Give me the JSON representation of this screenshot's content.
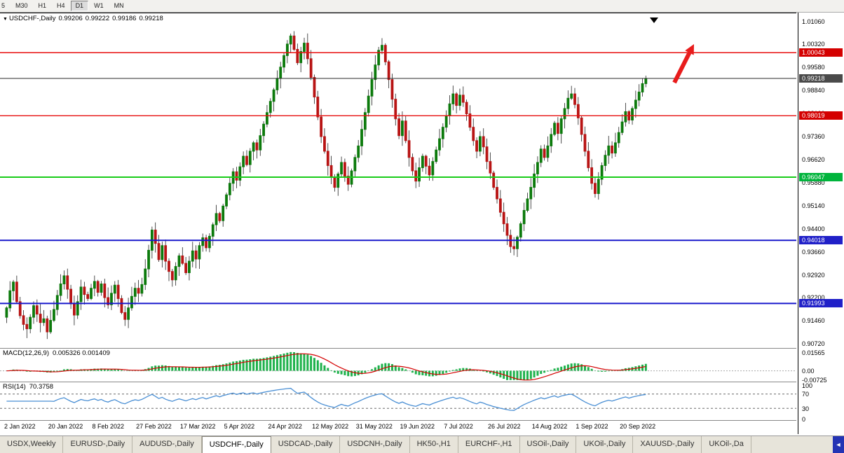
{
  "toolbar": {
    "timeframes": [
      "5",
      "M30",
      "H1",
      "H4",
      "D1",
      "W1",
      "MN"
    ],
    "active": "D1"
  },
  "chart": {
    "collapse_icon": "▼",
    "symbol_label": "USDCHF-,Daily",
    "ohlc": {
      "open": "0.99206",
      "high": "0.99222",
      "low": "0.99186",
      "close": "0.99218"
    }
  },
  "price_axis": {
    "ticks": [
      "1.01060",
      "1.00320",
      "0.99580",
      "0.98840",
      "0.98100",
      "0.97360",
      "0.96620",
      "0.95880",
      "0.95140",
      "0.94400",
      "0.93660",
      "0.92920",
      "0.92200",
      "0.91460",
      "0.90720"
    ],
    "badges": [
      {
        "value": "1.00043",
        "bg": "#d40000"
      },
      {
        "value": "0.99218",
        "bg": "#4a4a4a"
      },
      {
        "value": "0.98019",
        "bg": "#d40000"
      },
      {
        "value": "0.96047",
        "bg": "#00b43c"
      },
      {
        "value": "0.94018",
        "bg": "#2020c8"
      },
      {
        "value": "0.91993",
        "bg": "#2020c8"
      }
    ]
  },
  "macd": {
    "name": "MACD(12,26,9)",
    "values_text": "0.005326 0.001409",
    "axis": [
      {
        "label": "0.01565",
        "v": 0.01565
      },
      {
        "label": "0.00",
        "v": 0
      },
      {
        "label": "-0.00725",
        "v": -0.00725
      }
    ]
  },
  "rsi": {
    "name": "RSI(14)",
    "value_text": "70.3758",
    "axis": [
      {
        "label": "100",
        "v": 100
      },
      {
        "label": "70",
        "v": 70
      },
      {
        "label": "30",
        "v": 30
      },
      {
        "label": "0",
        "v": 0
      }
    ],
    "dashed_levels": [
      70,
      30
    ]
  },
  "date_axis": [
    "2 Jan 2022",
    "20 Jan 2022",
    "8 Feb 2022",
    "27 Feb 2022",
    "17 Mar 2022",
    "5 Apr 2022",
    "24 Apr 2022",
    "12 May 2022",
    "31 May 2022",
    "19 Jun 2022",
    "7 Jul 2022",
    "26 Jul 2022",
    "14 Aug 2022",
    "1 Sep 2022",
    "20 Sep 2022"
  ],
  "tabs": {
    "active": "USDCHF-,Daily",
    "scroll_button": "◄",
    "items": [
      "USDX,Weekly",
      "EURUSD-,Daily",
      "AUDUSD-,Daily",
      "USDCHF-,Daily",
      "USDCAD-,Daily",
      "USDCNH-,Daily",
      "HK50-,H1",
      "EURCHF-,H1",
      "USOil-,Daily",
      "UKOil-,Daily",
      "XAUUSD-,Daily",
      "UKOil-,Da"
    ],
    "note": ""
  },
  "chart_data": {
    "type": "candlestick",
    "symbol": "USDCHF-",
    "timeframe": "Daily",
    "title": "USDCHF-,Daily 0.99206 0.99222 0.99186 0.99218",
    "last_price": 0.99218,
    "y_axis": {
      "min": 0.9072,
      "max": 1.0106,
      "tick_step": 0.0074
    },
    "x_range": [
      "2 Jan 2022",
      "20 Sep 2022"
    ],
    "horizontal_levels": [
      {
        "price": 1.00043,
        "color": "#e81010",
        "width": 1.4
      },
      {
        "price": 0.98019,
        "color": "#e81010",
        "width": 1.4
      },
      {
        "price": 0.96047,
        "color": "#18cc18",
        "width": 2
      },
      {
        "price": 0.94018,
        "color": "#1818cc",
        "width": 2
      },
      {
        "price": 0.91993,
        "color": "#1818cc",
        "width": 2
      }
    ],
    "current_price_line": {
      "price": 0.99218,
      "color": "#2a2a2a"
    },
    "closes": [
      0.9185,
      0.924,
      0.9268,
      0.9205,
      0.916,
      0.9132,
      0.9118,
      0.9155,
      0.9192,
      0.9165,
      0.9138,
      0.915,
      0.9108,
      0.9145,
      0.918,
      0.9225,
      0.9262,
      0.9288,
      0.9245,
      0.9198,
      0.9162,
      0.9205,
      0.9252,
      0.9228,
      0.9215,
      0.9248,
      0.927,
      0.9235,
      0.9262,
      0.9218,
      0.9195,
      0.9232,
      0.9258,
      0.9215,
      0.917,
      0.9148,
      0.9185,
      0.9222,
      0.9248,
      0.9232,
      0.926,
      0.931,
      0.937,
      0.9435,
      0.9392,
      0.934,
      0.9385,
      0.9335,
      0.9302,
      0.9275,
      0.9318,
      0.9352,
      0.9328,
      0.9298,
      0.9335,
      0.9368,
      0.9342,
      0.9385,
      0.941,
      0.9378,
      0.9415,
      0.9452,
      0.9488,
      0.9465,
      0.9512,
      0.9548,
      0.9585,
      0.9622,
      0.9595,
      0.9638,
      0.9672,
      0.9645,
      0.9688,
      0.9715,
      0.9692,
      0.9738,
      0.9775,
      0.9812,
      0.9848,
      0.9885,
      0.9922,
      0.9958,
      0.9995,
      1.0032,
      1.0058,
      1.0015,
      0.9972,
      1.0008,
      1.0035,
      0.9985,
      0.9925,
      0.9862,
      0.9798,
      0.9735,
      0.9688,
      0.9642,
      0.9605,
      0.9572,
      0.9615,
      0.9652,
      0.9608,
      0.9582,
      0.9625,
      0.9668,
      0.9705,
      0.9758,
      0.9812,
      0.9865,
      0.9918,
      0.9965,
      1.0012,
      1.0028,
      0.9975,
      0.9918,
      0.9855,
      0.9792,
      0.9738,
      0.9785,
      0.9722,
      0.9668,
      0.9625,
      0.9592,
      0.9635,
      0.9672,
      0.964,
      0.9612,
      0.9655,
      0.9692,
      0.9728,
      0.9765,
      0.9802,
      0.984,
      0.9872,
      0.9835,
      0.9868,
      0.9845,
      0.9808,
      0.9765,
      0.9722,
      0.9688,
      0.9735,
      0.9702,
      0.9655,
      0.9618,
      0.9572,
      0.9535,
      0.9492,
      0.9455,
      0.9418,
      0.9382,
      0.9375,
      0.9412,
      0.9455,
      0.9498,
      0.9535,
      0.9572,
      0.9615,
      0.9652,
      0.9695,
      0.9668,
      0.9705,
      0.9742,
      0.9778,
      0.9745,
      0.9792,
      0.9825,
      0.9858,
      0.9872,
      0.9838,
      0.9795,
      0.9742,
      0.9688,
      0.9635,
      0.9585,
      0.9552,
      0.9598,
      0.9642,
      0.9675,
      0.9705,
      0.9682,
      0.9715,
      0.9748,
      0.9782,
      0.9815,
      0.9788,
      0.9825,
      0.9852,
      0.9878,
      0.9905,
      0.99218
    ],
    "indicators": [
      {
        "name": "MACD",
        "params": "12,26,9",
        "current": [
          0.005326,
          0.001409
        ],
        "axis_values": [
          0.01565,
          0,
          -0.00725
        ],
        "histogram_color": "#1eb24c",
        "signal_color": "#d40000"
      },
      {
        "name": "RSI",
        "params": "14",
        "current": 70.3758,
        "levels": [
          70,
          30
        ],
        "axis_values": [
          100,
          70,
          30,
          0
        ],
        "line_color": "#4a8fd4"
      }
    ],
    "annotations": {
      "up_trend_arrow": {
        "color": "#e81c1c"
      },
      "down_marker": {
        "color": "#000000"
      }
    }
  }
}
